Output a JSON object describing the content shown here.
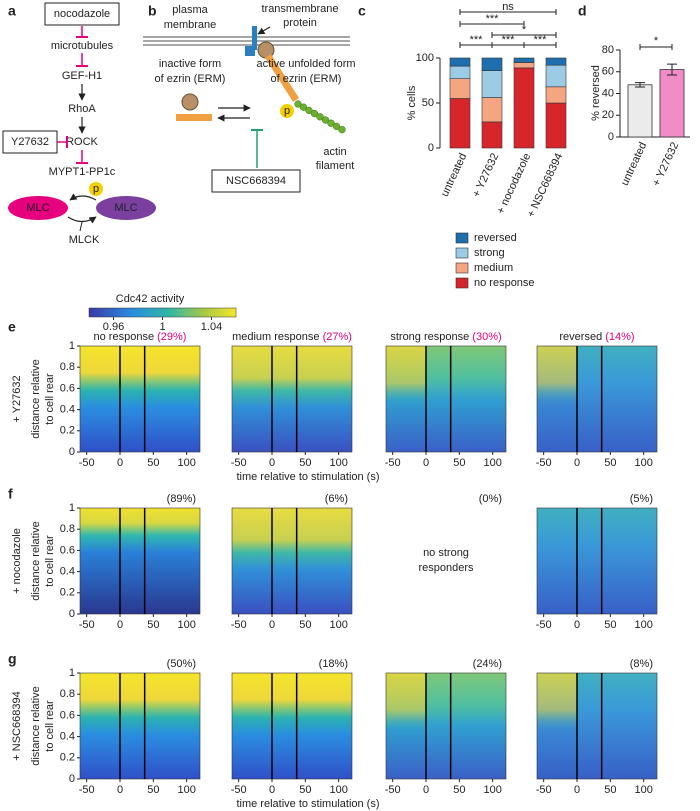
{
  "panel_labels": [
    "a",
    "b",
    "c",
    "d",
    "e",
    "f",
    "g"
  ],
  "pathway": {
    "nocodazole": "nocodazole",
    "microtubules": "microtubules",
    "gef": "GEF-H1",
    "rhoa": "RhoA",
    "rock": "ROCK",
    "y27632": "Y27632",
    "mypt": "MYPT1-PP1c",
    "p": "p",
    "mlc_left": "MLC",
    "mlc_right": "MLC",
    "mlck": "MLCK"
  },
  "schematic": {
    "plasma_membrane": [
      "plasma",
      "membrane"
    ],
    "transmembrane_protein": [
      "transmembrane",
      "protein"
    ],
    "inactive_ezrin": [
      "inactive form",
      "of ezrin (ERM)"
    ],
    "active_ezrin": [
      "active unfolded form",
      "of ezrin (ERM)"
    ],
    "p": "p",
    "actin": [
      "actin",
      "filament"
    ],
    "inhibitor": "NSC668394"
  },
  "chart_data": [
    {
      "type": "stacked_bar",
      "ylabel": "% cells",
      "categories": [
        "untreated",
        "+ Y27632",
        "+ nocodazole",
        "+ NSC668394"
      ],
      "category_colors": [
        "#000000",
        "#e6007e",
        "#9b3fb0",
        "#23a06e"
      ],
      "series": [
        {
          "name": "no response",
          "color": "#d7262b",
          "values": [
            55,
            29,
            89,
            50
          ]
        },
        {
          "name": "medium",
          "color": "#f4a582",
          "values": [
            22,
            27,
            6,
            18
          ]
        },
        {
          "name": "strong",
          "color": "#9ccbe6",
          "values": [
            14,
            30,
            0,
            24
          ]
        },
        {
          "name": "reversed",
          "color": "#1f6fae",
          "values": [
            9,
            14,
            5,
            8
          ]
        }
      ],
      "ylim": [
        0,
        100
      ],
      "yticks": [
        0,
        50,
        100
      ],
      "significance": [
        "ns",
        "***",
        "*",
        "***",
        "***",
        "***"
      ]
    },
    {
      "type": "bar",
      "ylabel": "% reversed",
      "categories": [
        "untreated",
        "+ Y27632"
      ],
      "category_colors": [
        "#000000",
        "#e6007e"
      ],
      "values": [
        48,
        62
      ],
      "errors": [
        2,
        5
      ],
      "colors": [
        "#ebebeb",
        "#f28cc8"
      ],
      "ylim": [
        0,
        80
      ],
      "yticks": [
        0,
        20,
        40,
        60,
        80
      ],
      "significance": [
        "*"
      ]
    }
  ],
  "heatmaps": {
    "colorbar": {
      "title": "Cdc42 activity",
      "lim": [
        0.94,
        1.06
      ],
      "ticks": [
        0.96,
        1,
        1.04
      ]
    },
    "ylabel": [
      "distance relative",
      "to cell rear"
    ],
    "xlabel": "time relative to stimulation (s)",
    "xlim": [
      -60,
      120
    ],
    "xticks": [
      -50,
      0,
      50,
      100
    ],
    "ylim": [
      0,
      1
    ],
    "yticks": [
      0,
      0.2,
      0.4,
      0.6,
      0.8,
      1
    ],
    "rows": [
      {
        "treatment": "+ Y27632",
        "color": "#e6007e",
        "show_xlabel": true,
        "panels": [
          {
            "title": "no response",
            "percent": "(29%)"
          },
          {
            "title": "medium response",
            "percent": "(27%)"
          },
          {
            "title": "strong response",
            "percent": "(30%)"
          },
          {
            "title": "reversed",
            "percent": "(14%)"
          }
        ]
      },
      {
        "treatment": "+ nocodazole",
        "color": "#9b3fb0",
        "show_xlabel": false,
        "panels": [
          {
            "percent": "(89%)"
          },
          {
            "percent": "(6%)"
          },
          {
            "percent": "(0%)",
            "note": [
              "no strong",
              "responders"
            ]
          },
          {
            "percent": "(5%)"
          }
        ]
      },
      {
        "treatment": "+ NSC668394",
        "color": "#23a06e",
        "show_xlabel": true,
        "panels": [
          {
            "percent": "(50%)"
          },
          {
            "percent": "(18%)"
          },
          {
            "percent": "(24%)"
          },
          {
            "percent": "(8%)"
          }
        ]
      }
    ]
  }
}
